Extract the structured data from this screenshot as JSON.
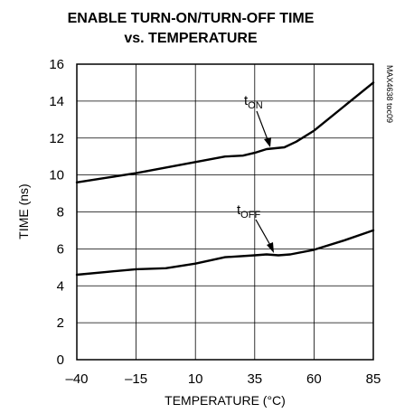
{
  "chart_data": {
    "type": "line",
    "title_line1": "ENABLE TURN-ON/TURN-OFF TIME",
    "title_line2": "vs. TEMPERATURE",
    "xlabel": "TEMPERATURE (°C)",
    "ylabel": "TIME (ns)",
    "xlim": [
      -40,
      85
    ],
    "ylim": [
      0,
      16
    ],
    "xticks": [
      -40,
      -15,
      10,
      35,
      60,
      85
    ],
    "yticks": [
      0,
      2,
      4,
      6,
      8,
      10,
      12,
      14,
      16
    ],
    "grid": true,
    "side_note": "MAX4638 toc09",
    "series": [
      {
        "name": "tON",
        "label_main": "t",
        "label_sub": "ON",
        "x": [
          -40,
          -27.5,
          -15,
          -2.5,
          10,
          22.5,
          30,
          35,
          40,
          47.5,
          52.5,
          60,
          72.5,
          85
        ],
        "y": [
          9.6,
          9.85,
          10.1,
          10.4,
          10.7,
          11.0,
          11.05,
          11.2,
          11.4,
          11.5,
          11.8,
          12.4,
          13.7,
          15.0
        ]
      },
      {
        "name": "tOFF",
        "label_main": "t",
        "label_sub": "OFF",
        "x": [
          -40,
          -27.5,
          -15,
          -2.5,
          10,
          22.5,
          35,
          40,
          45,
          50,
          60,
          72.5,
          85
        ],
        "y": [
          4.6,
          4.75,
          4.9,
          4.95,
          5.2,
          5.55,
          5.65,
          5.7,
          5.65,
          5.7,
          5.95,
          6.45,
          7.0
        ]
      }
    ]
  }
}
